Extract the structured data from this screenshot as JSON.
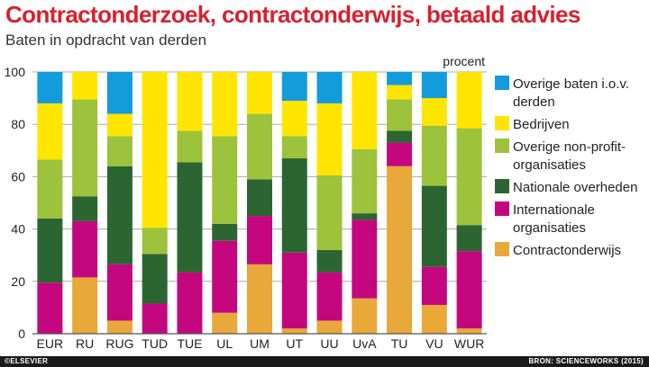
{
  "chart_data": {
    "type": "bar",
    "stacked": true,
    "title": "Contractonderzoek, contractonderwijs, betaald advies",
    "subtitle": "Baten in opdracht van derden",
    "ylabel": "procent",
    "ylim": [
      0,
      100
    ],
    "yticks": [
      0,
      20,
      40,
      60,
      80,
      100
    ],
    "categories": [
      "EUR",
      "RU",
      "RUG",
      "TUD",
      "TUE",
      "UL",
      "UM",
      "UT",
      "UU",
      "UvA",
      "TU",
      "VU",
      "WUR"
    ],
    "series": [
      {
        "name": "Contractonderwijs",
        "color": "#e8a83a",
        "values": [
          0,
          21.5,
          5,
          0,
          0,
          8,
          26.5,
          2,
          5,
          13.5,
          64,
          11,
          2
        ]
      },
      {
        "name": "Internationale organisaties",
        "color": "#c4077f",
        "values": [
          19.5,
          21.5,
          21.5,
          11.5,
          23.5,
          27.5,
          18.5,
          29,
          18.5,
          30,
          9,
          14.5,
          29.5
        ]
      },
      {
        "name": "Nationale overheden",
        "color": "#2b6632",
        "values": [
          24.5,
          9.5,
          37.5,
          19,
          42,
          6.5,
          14,
          36,
          8.5,
          2.5,
          4.5,
          31,
          10
        ]
      },
      {
        "name": "Overige non-profit-organisaties",
        "color": "#9dc23b",
        "values": [
          22.5,
          37,
          11.5,
          10,
          12,
          33.5,
          25,
          8.5,
          28.5,
          24.5,
          12,
          23,
          37
        ]
      },
      {
        "name": "Bedrijven",
        "color": "#ffe500",
        "values": [
          21.5,
          10.5,
          8.5,
          59.5,
          22.5,
          24.5,
          16,
          13.5,
          27.5,
          29.5,
          5.5,
          10.5,
          21.5
        ]
      },
      {
        "name": "Overige baten i.o.v. derden",
        "color": "#139cdb",
        "values": [
          12,
          0,
          16,
          0,
          0,
          0,
          0,
          11,
          12,
          0,
          5,
          10,
          0
        ]
      }
    ],
    "legend": [
      {
        "lines": [
          "Overige baten i.o.v.",
          "derden"
        ],
        "color": "#139cdb"
      },
      {
        "lines": [
          "Bedrijven"
        ],
        "color": "#ffe500"
      },
      {
        "lines": [
          "Overige non-profit-",
          "organisaties"
        ],
        "color": "#9dc23b"
      },
      {
        "lines": [
          "Nationale overheden"
        ],
        "color": "#2b6632"
      },
      {
        "lines": [
          "Internationale",
          "organisaties"
        ],
        "color": "#c4077f"
      },
      {
        "lines": [
          "Contractonderwijs"
        ],
        "color": "#e8a83a"
      }
    ],
    "legend_position": "right"
  },
  "footer": {
    "publisher": "©ELSEVIER",
    "source": "BRON: SCIENCEWORKS (2015)"
  }
}
